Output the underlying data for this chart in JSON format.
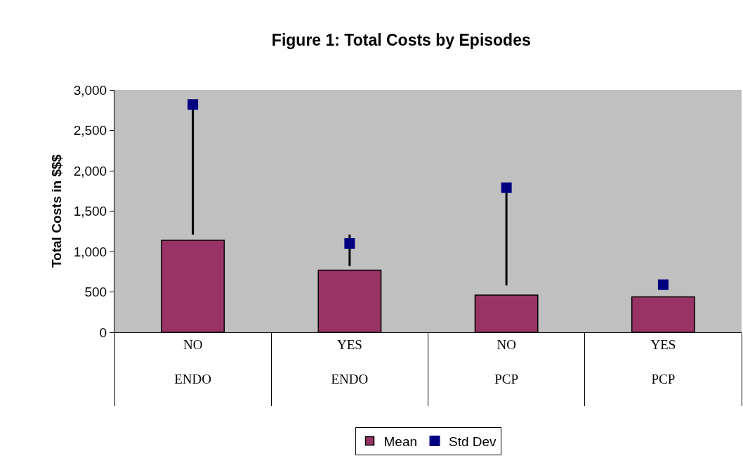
{
  "chart_data": {
    "type": "bar",
    "title": "Figure 1: Total Costs by Episodes",
    "ylabel": "Total Costs in $$$",
    "categories": [
      "NO\nENDO",
      "YES\nENDO",
      "NO\nPCP",
      "YES\nPCP"
    ],
    "series": [
      {
        "name": "Mean",
        "color": "#993366",
        "values": [
          1140,
          770,
          460,
          440
        ]
      },
      {
        "name": "Std Dev",
        "type": "scatter",
        "color": "#000080",
        "marker": "square",
        "values": [
          2820,
          1100,
          1790,
          590
        ],
        "errors": [
          [
            1210,
            2820
          ],
          [
            820,
            1210
          ],
          [
            580,
            1800
          ],
          null
        ]
      }
    ],
    "ylim": [
      0,
      3000
    ],
    "yticks": [
      {
        "value": 0,
        "label": "0"
      },
      {
        "value": 500,
        "label": "500"
      },
      {
        "value": 1000,
        "label": "1,000"
      },
      {
        "value": 1500,
        "label": "1,500"
      },
      {
        "value": 2000,
        "label": "2,000"
      },
      {
        "value": 2500,
        "label": "2,500"
      },
      {
        "value": 3000,
        "label": "3,000"
      }
    ],
    "grid": false,
    "legend": "bottom"
  }
}
